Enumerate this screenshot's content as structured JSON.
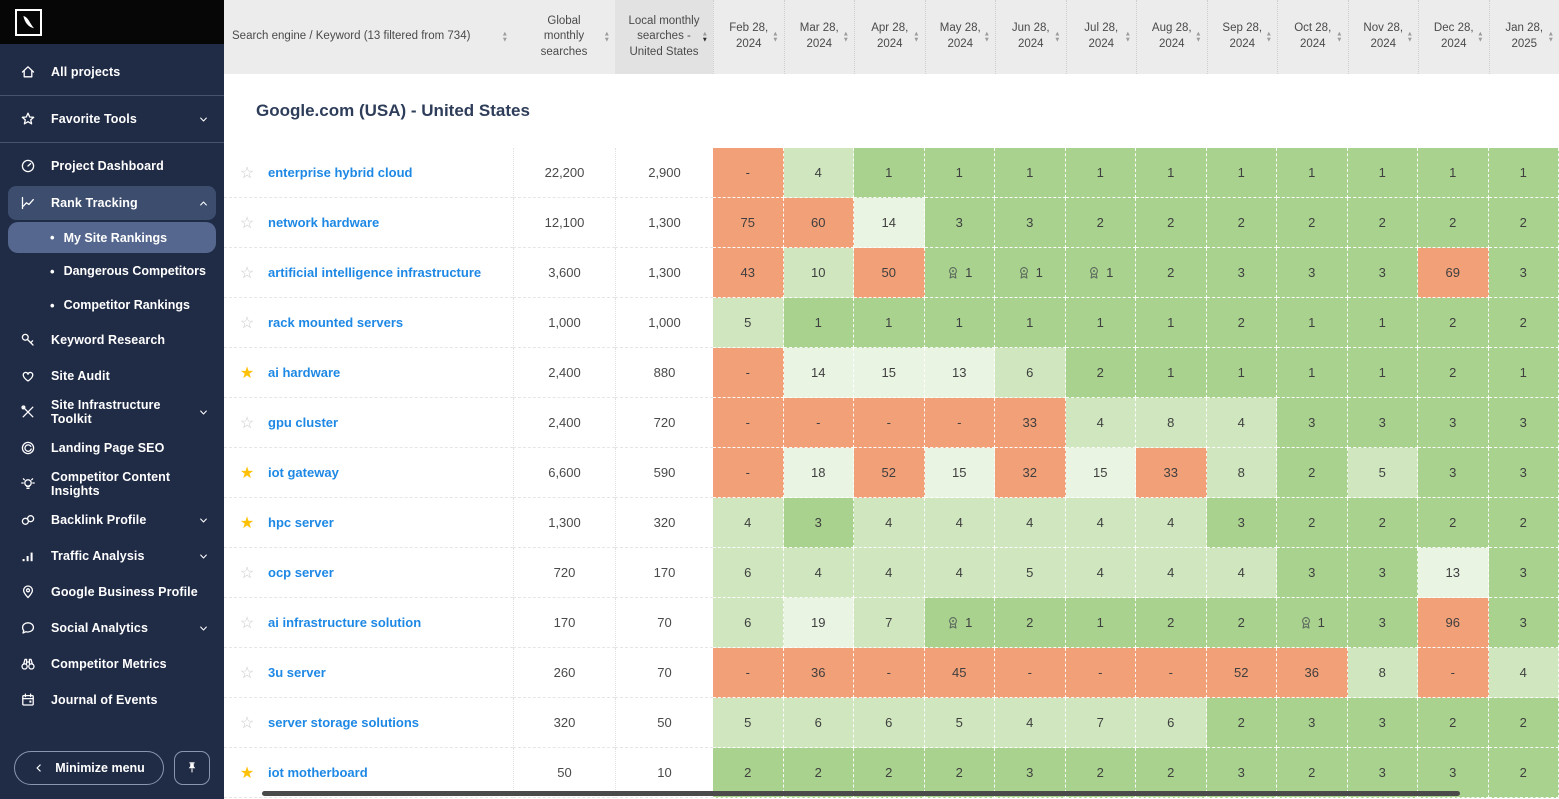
{
  "sidebar": {
    "logo": "swoosh-logo",
    "items": [
      {
        "label": "All projects",
        "icon": "home-icon"
      },
      {
        "divider": true
      },
      {
        "label": "Favorite Tools",
        "icon": "star-icon",
        "chevron": "down"
      },
      {
        "divider": true
      },
      {
        "label": "Project Dashboard",
        "icon": "gauge-icon"
      },
      {
        "label": "Rank Tracking",
        "icon": "chart-line-icon",
        "chevron": "up",
        "active": true
      },
      {
        "label": "My Site Rankings",
        "sub": true,
        "selected": true
      },
      {
        "label": "Dangerous Competitors",
        "sub": true
      },
      {
        "label": "Competitor Rankings",
        "sub": true
      },
      {
        "label": "Keyword Research",
        "icon": "key-icon"
      },
      {
        "label": "Site Audit",
        "icon": "heart-icon"
      },
      {
        "label": "Site Infrastructure Toolkit",
        "icon": "tools-icon",
        "chevron": "down"
      },
      {
        "label": "Landing Page SEO",
        "icon": "target-icon"
      },
      {
        "label": "Competitor Content Insights",
        "icon": "lightbulb-icon"
      },
      {
        "label": "Backlink Profile",
        "icon": "link-icon",
        "chevron": "down"
      },
      {
        "label": "Traffic Analysis",
        "icon": "bar-chart-icon",
        "chevron": "down"
      },
      {
        "label": "Google Business Profile",
        "icon": "map-pin-icon"
      },
      {
        "label": "Social Analytics",
        "icon": "chat-icon",
        "chevron": "down"
      },
      {
        "label": "Competitor Metrics",
        "icon": "binoculars-icon"
      },
      {
        "label": "Journal of Events",
        "icon": "calendar-icon"
      }
    ],
    "minimize_label": "Minimize menu"
  },
  "table": {
    "keyword_header": "Search engine / Keyword (13 filtered from 734)",
    "global_header": "Global monthly searches",
    "local_header": "Local monthly searches - United States",
    "months": [
      "Feb 28, 2024",
      "Mar 28, 2024",
      "Apr 28, 2024",
      "May 28, 2024",
      "Jun 28, 2024",
      "Jul 28, 2024",
      "Aug 28, 2024",
      "Sep 28, 2024",
      "Oct 28, 2024",
      "Nov 28, 2024",
      "Dec 28, 2024",
      "Jan 28, 2025"
    ],
    "section_title": "Google.com (USA) - United States",
    "rows": [
      {
        "keyword": "enterprise hybrid cloud",
        "starred": false,
        "global": "22,200",
        "local": "2,900",
        "ranks": [
          "-",
          "4",
          "1",
          "1",
          "1",
          "1",
          "1",
          "1",
          "1",
          "1",
          "1",
          "1"
        ],
        "medal_cols": []
      },
      {
        "keyword": "network hardware",
        "starred": false,
        "global": "12,100",
        "local": "1,300",
        "ranks": [
          "75",
          "60",
          "14",
          "3",
          "3",
          "2",
          "2",
          "2",
          "2",
          "2",
          "2",
          "2"
        ],
        "medal_cols": []
      },
      {
        "keyword": "artificial intelligence infrastructure",
        "starred": false,
        "global": "3,600",
        "local": "1,300",
        "ranks": [
          "43",
          "10",
          "50",
          "1",
          "1",
          "1",
          "2",
          "3",
          "3",
          "3",
          "69",
          "3"
        ],
        "medal_cols": [
          3,
          4,
          5
        ]
      },
      {
        "keyword": "rack mounted servers",
        "starred": false,
        "global": "1,000",
        "local": "1,000",
        "ranks": [
          "5",
          "1",
          "1",
          "1",
          "1",
          "1",
          "1",
          "2",
          "1",
          "1",
          "2",
          "2"
        ],
        "medal_cols": []
      },
      {
        "keyword": "ai hardware",
        "starred": true,
        "global": "2,400",
        "local": "880",
        "ranks": [
          "-",
          "14",
          "15",
          "13",
          "6",
          "2",
          "1",
          "1",
          "1",
          "1",
          "2",
          "1"
        ],
        "medal_cols": []
      },
      {
        "keyword": "gpu cluster",
        "starred": false,
        "global": "2,400",
        "local": "720",
        "ranks": [
          "-",
          "-",
          "-",
          "-",
          "33",
          "4",
          "8",
          "4",
          "3",
          "3",
          "3",
          "3"
        ],
        "medal_cols": []
      },
      {
        "keyword": "iot gateway",
        "starred": true,
        "global": "6,600",
        "local": "590",
        "ranks": [
          "-",
          "18",
          "52",
          "15",
          "32",
          "15",
          "33",
          "8",
          "2",
          "5",
          "3",
          "3"
        ],
        "medal_cols": []
      },
      {
        "keyword": "hpc server",
        "starred": true,
        "global": "1,300",
        "local": "320",
        "ranks": [
          "4",
          "3",
          "4",
          "4",
          "4",
          "4",
          "4",
          "3",
          "2",
          "2",
          "2",
          "2"
        ],
        "medal_cols": []
      },
      {
        "keyword": "ocp server",
        "starred": false,
        "global": "720",
        "local": "170",
        "ranks": [
          "6",
          "4",
          "4",
          "4",
          "5",
          "4",
          "4",
          "4",
          "3",
          "3",
          "13",
          "3"
        ],
        "medal_cols": []
      },
      {
        "keyword": "ai infrastructure solution",
        "starred": false,
        "global": "170",
        "local": "70",
        "ranks": [
          "6",
          "19",
          "7",
          "1",
          "2",
          "1",
          "2",
          "2",
          "1",
          "3",
          "96",
          "3"
        ],
        "medal_cols": [
          3,
          8
        ]
      },
      {
        "keyword": "3u server",
        "starred": false,
        "global": "260",
        "local": "70",
        "ranks": [
          "-",
          "36",
          "-",
          "45",
          "-",
          "-",
          "-",
          "52",
          "36",
          "8",
          "-",
          "4"
        ],
        "medal_cols": []
      },
      {
        "keyword": "server storage solutions",
        "starred": false,
        "global": "320",
        "local": "50",
        "ranks": [
          "5",
          "6",
          "6",
          "5",
          "4",
          "7",
          "6",
          "2",
          "3",
          "3",
          "2",
          "2"
        ],
        "medal_cols": []
      },
      {
        "keyword": "iot motherboard",
        "starred": true,
        "global": "50",
        "local": "10",
        "ranks": [
          "2",
          "2",
          "2",
          "2",
          "3",
          "2",
          "2",
          "3",
          "2",
          "3",
          "3",
          "2"
        ],
        "medal_cols": []
      }
    ]
  },
  "colors": {
    "sidebar_bg": "#202B46",
    "logo_strip_bg": "#060606",
    "nav_active_bg": "#3C4D6E",
    "nav_selected_bg": "#55678E",
    "header_bg": "#ECECEC",
    "header_sorted_bg": "#E2E2E2",
    "link_blue": "#1E88E5",
    "star_gold": "#FFC107",
    "rank_orange": "#F2A077",
    "rank_green": "#A8D28E",
    "rank_light_green": "#CFE6BE",
    "rank_very_light_green": "#EAF4E3"
  }
}
